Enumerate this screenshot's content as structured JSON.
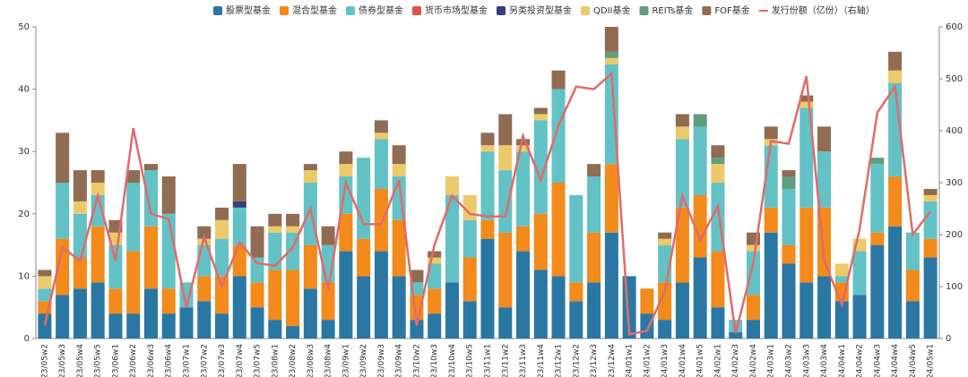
{
  "chart_data": {
    "type": "stacked-bar-line",
    "categories": [
      "23/05w2",
      "23/05w3",
      "23/05w4",
      "23/05w5",
      "23/06w1",
      "23/06w2",
      "23/06w3",
      "23/06w4",
      "23/07w1",
      "23/07w2",
      "23/07w3",
      "23/07w4",
      "23/07w5",
      "23/08w1",
      "23/08w2",
      "23/08w3",
      "23/08w4",
      "23/09w1",
      "23/09w2",
      "23/09w3",
      "23/09w4",
      "23/10w2",
      "23/10w3",
      "23/10w4",
      "23/10w5",
      "23/11w1",
      "23/11w2",
      "23/11w3",
      "23/11w4",
      "23/12w1",
      "23/12w2",
      "23/12w3",
      "23/12w4",
      "24/01w1",
      "24/01w2",
      "24/01w3",
      "24/01w4",
      "24/01w5",
      "24/02w1",
      "24/02w3",
      "24/02w4",
      "24/03w1",
      "24/03w2",
      "24/03w3",
      "24/03w4",
      "24/04w1",
      "24/04w2",
      "24/04w3",
      "24/04w4",
      "24/04w5",
      "24/05w1"
    ],
    "series": [
      {
        "name": "股票型基金",
        "color": "#2b77a3",
        "values": [
          4,
          7,
          8,
          9,
          4,
          4,
          8,
          4,
          5,
          6,
          4,
          10,
          5,
          3,
          2,
          8,
          3,
          14,
          10,
          14,
          10,
          3,
          4,
          9,
          6,
          16,
          5,
          14,
          11,
          10,
          6,
          9,
          17,
          10,
          4,
          3,
          9,
          13,
          5,
          1,
          3,
          17,
          12,
          9,
          10,
          6,
          7,
          15,
          18,
          6,
          13
        ]
      },
      {
        "name": "混合型基金",
        "color": "#f28a1c",
        "values": [
          2,
          9,
          5,
          9,
          4,
          10,
          10,
          4,
          0,
          4,
          6,
          5,
          4,
          8,
          9,
          7,
          6,
          6,
          6,
          10,
          9,
          4,
          4,
          0,
          7,
          3,
          12,
          4,
          9,
          15,
          3,
          8,
          11,
          0,
          4,
          6,
          12,
          10,
          9,
          0,
          4,
          4,
          3,
          12,
          11,
          3,
          0,
          2,
          8,
          5,
          3
        ]
      },
      {
        "name": "债券型基金",
        "color": "#62c2c5",
        "values": [
          2,
          9,
          7,
          5,
          7,
          11,
          9,
          12,
          4,
          5,
          6,
          6,
          4,
          6,
          6,
          10,
          6,
          6,
          13,
          8,
          7,
          2,
          4,
          14,
          6,
          11,
          10,
          12,
          15,
          15,
          14,
          9,
          16,
          0,
          0,
          6,
          11,
          11,
          11,
          2,
          7,
          10,
          9,
          16,
          9,
          1,
          7,
          11,
          15,
          6,
          6
        ]
      },
      {
        "name": "货币市场型基金",
        "color": "#d9534f",
        "values": [
          0,
          0,
          0,
          0,
          0,
          0,
          0,
          0,
          0,
          0,
          0,
          0,
          0,
          0,
          0,
          0,
          0,
          0,
          0,
          0,
          0,
          0,
          0,
          0,
          0,
          0,
          0,
          0,
          0,
          0,
          0,
          0,
          0,
          0,
          0,
          0,
          0,
          0,
          0,
          0,
          0,
          0,
          0,
          0,
          0,
          0,
          0,
          0,
          0,
          0,
          0
        ]
      },
      {
        "name": "另类投资型基金",
        "color": "#34407a",
        "values": [
          0,
          0,
          0,
          0,
          0,
          0,
          0,
          0,
          0,
          0,
          0,
          1,
          0,
          0,
          0,
          0,
          0,
          0,
          0,
          0,
          0,
          0,
          0,
          0,
          0,
          0,
          0,
          0,
          0,
          0,
          0,
          0,
          0,
          0,
          0,
          0,
          0,
          0,
          0,
          0,
          0,
          0,
          0,
          0,
          0,
          0,
          0,
          0,
          0,
          0,
          0
        ]
      },
      {
        "name": "QDII基金",
        "color": "#ecc96b",
        "values": [
          2,
          0,
          2,
          2,
          2,
          0,
          0,
          0,
          0,
          1,
          3,
          0,
          0,
          1,
          1,
          2,
          0,
          2,
          0,
          1,
          2,
          0,
          1,
          3,
          4,
          1,
          4,
          1,
          1,
          0,
          0,
          0,
          1,
          0,
          0,
          1,
          2,
          0,
          3,
          0,
          1,
          1,
          0,
          1,
          0,
          2,
          2,
          0,
          2,
          0,
          1
        ]
      },
      {
        "name": "REITs基金",
        "color": "#5f9f7e",
        "values": [
          0,
          0,
          0,
          0,
          0,
          0,
          0,
          0,
          0,
          0,
          0,
          0,
          0,
          0,
          0,
          0,
          0,
          0,
          0,
          0,
          0,
          0,
          0,
          0,
          0,
          0,
          0,
          0,
          0,
          0,
          0,
          0,
          1,
          0,
          0,
          0,
          0,
          2,
          1,
          0,
          0,
          0,
          2,
          0,
          0,
          0,
          0,
          1,
          0,
          0,
          0
        ]
      },
      {
        "name": "FOF基金",
        "color": "#8f6c52",
        "values": [
          1,
          8,
          5,
          2,
          2,
          2,
          1,
          6,
          0,
          2,
          2,
          6,
          5,
          2,
          2,
          1,
          3,
          2,
          0,
          2,
          3,
          2,
          1,
          0,
          0,
          2,
          5,
          1,
          1,
          3,
          0,
          2,
          4,
          0,
          0,
          1,
          2,
          0,
          2,
          0,
          2,
          2,
          1,
          1,
          4,
          0,
          0,
          0,
          3,
          0,
          1
        ]
      },
      {
        "name": "发行份额（亿份）（右轴）",
        "color": "#e06b6b",
        "axis": "y2",
        "values": [
          25,
          175,
          150,
          275,
          150,
          405,
          240,
          230,
          60,
          195,
          100,
          185,
          145,
          140,
          175,
          250,
          95,
          300,
          220,
          220,
          305,
          25,
          180,
          275,
          240,
          235,
          235,
          390,
          305,
          410,
          485,
          480,
          510,
          8,
          15,
          90,
          275,
          190,
          255,
          10,
          145,
          380,
          375,
          505,
          150,
          65,
          210,
          435,
          485,
          200,
          245
        ]
      }
    ],
    "ylim": [
      0,
      50
    ],
    "yticks": [
      0,
      10,
      20,
      30,
      40,
      50
    ],
    "y2lim": [
      0,
      600
    ],
    "y2ticks": [
      0,
      100,
      200,
      300,
      400,
      500,
      600
    ]
  }
}
